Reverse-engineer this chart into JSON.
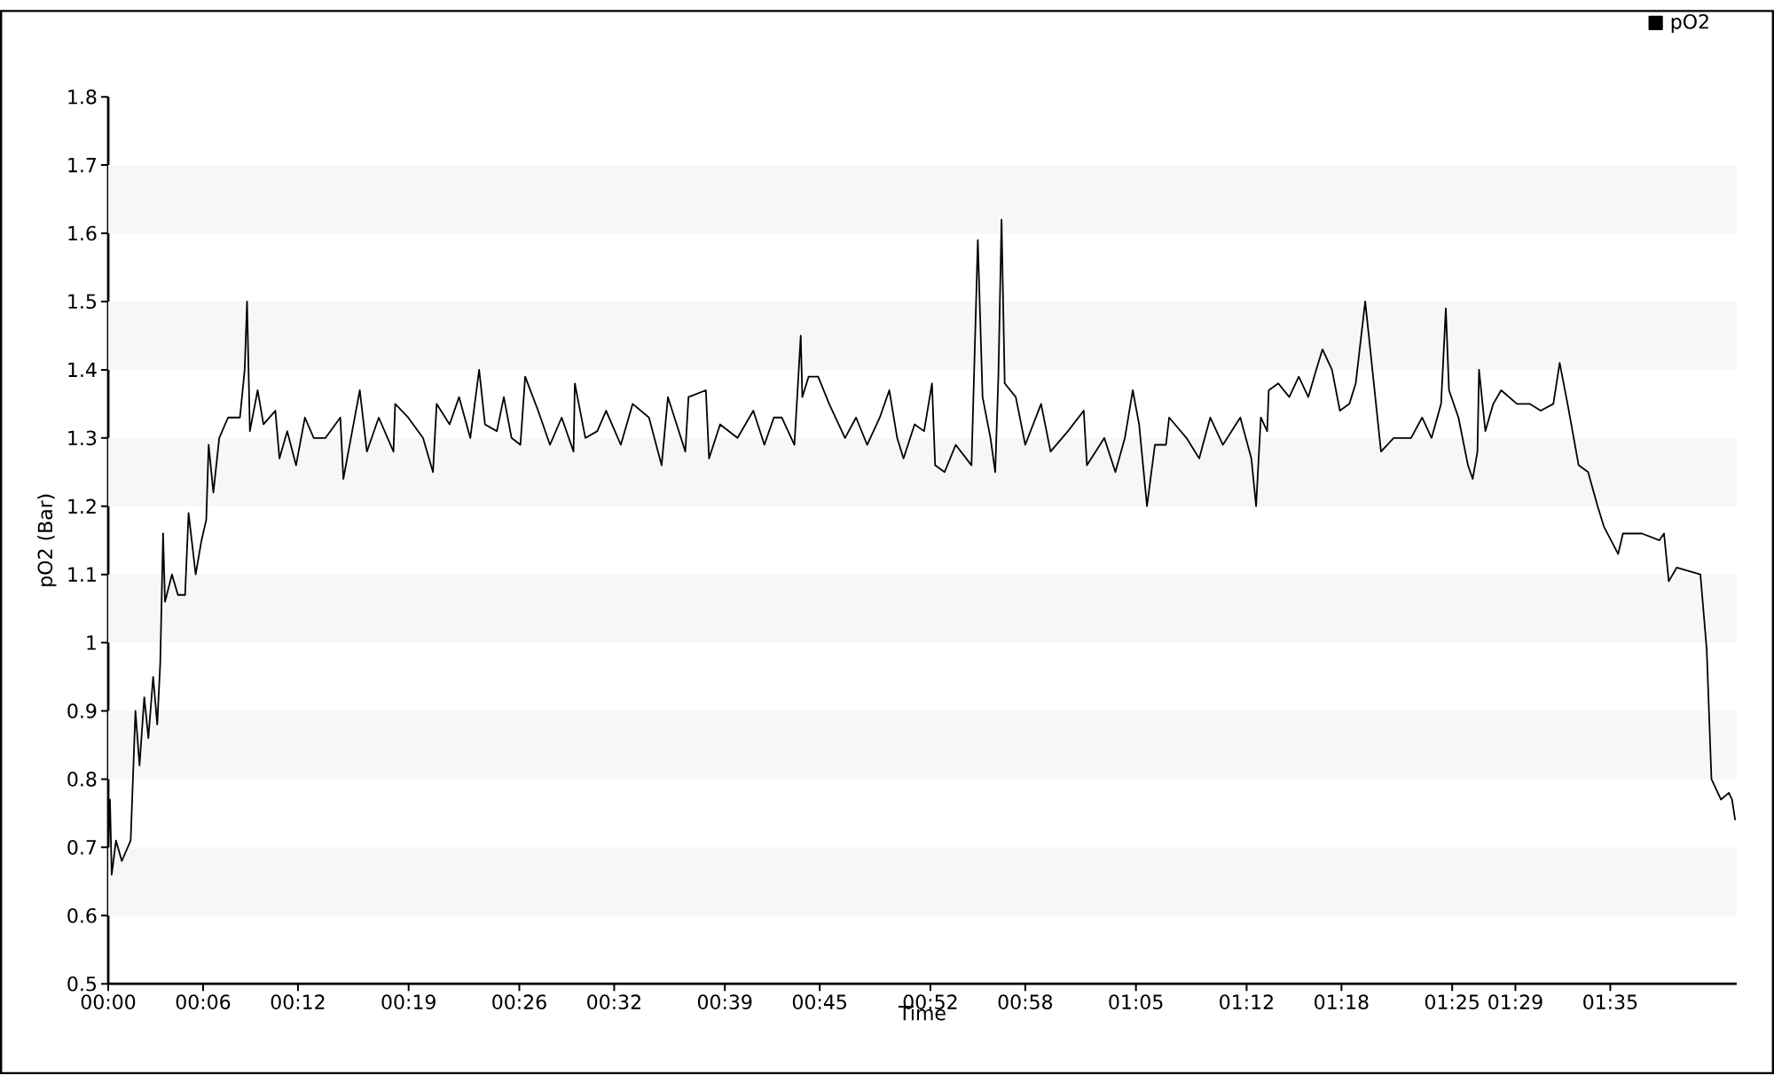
{
  "chart_data": {
    "type": "line",
    "xlabel": "Time",
    "ylabel": "pO2 (Bar)",
    "x": [
      0,
      0.11,
      0.22,
      0.49,
      0.86,
      1.42,
      1.72,
      1.98,
      2.28,
      2.54,
      2.84,
      3.1,
      3.29,
      3.47,
      3.59,
      4.03,
      4.41,
      4.86,
      5.08,
      5.53,
      5.9,
      6.2,
      6.35,
      6.65,
      7.02,
      7.58,
      8.33,
      8.63,
      8.78,
      8.96,
      9.45,
      9.82,
      10.57,
      10.83,
      11.32,
      11.88,
      12.44,
      13.0,
      13.74,
      14.68,
      14.87,
      15.43,
      15.91,
      16.36,
      17.11,
      18.04,
      18.15,
      18.97,
      19.91,
      20.54,
      20.77,
      21.59,
      22.19,
      22.9,
      23.46,
      23.83,
      24.58,
      25.02,
      25.51,
      26.07,
      26.37,
      27.19,
      27.94,
      28.68,
      29.43,
      29.51,
      30.18,
      30.93,
      31.49,
      32.42,
      33.17,
      34.2,
      35.0,
      35.4,
      36.5,
      36.7,
      37.8,
      38.0,
      38.7,
      39.8,
      40.8,
      41.5,
      42.1,
      42.6,
      43.4,
      43.8,
      43.9,
      44.3,
      44.9,
      45.6,
      46.6,
      47.3,
      48.0,
      48.8,
      49.4,
      49.9,
      50.3,
      51.0,
      51.6,
      52.1,
      52.3,
      52.9,
      53.6,
      54.6,
      55.0,
      55.3,
      55.8,
      56.1,
      56.3,
      56.5,
      56.7,
      57.4,
      58.0,
      59.0,
      59.6,
      60.7,
      61.7,
      61.9,
      63.0,
      63.7,
      64.3,
      64.8,
      65.2,
      65.7,
      66.2,
      66.9,
      67.1,
      68.2,
      69.0,
      69.7,
      70.5,
      71.6,
      72.3,
      72.6,
      72.9,
      73.3,
      73.4,
      74.0,
      74.7,
      75.3,
      75.9,
      76.4,
      76.8,
      77.4,
      77.9,
      78.5,
      78.9,
      79.5,
      80.0,
      80.5,
      81.3,
      82.4,
      83.1,
      83.7,
      84.3,
      84.6,
      84.8,
      85.4,
      86.0,
      86.3,
      86.6,
      86.7,
      87.1,
      87.6,
      88.1,
      89.1,
      89.9,
      90.6,
      91.4,
      91.8,
      92.3,
      93.0,
      93.6,
      94.2,
      94.6,
      95.5,
      95.8,
      97.0,
      98.1,
      98.4,
      98.7,
      99.2,
      100.7,
      101.1,
      101.4,
      102.0,
      102.5,
      102.7,
      102.9
    ],
    "series": [
      {
        "name": "pO2",
        "color": "#000000",
        "values": [
          0.7,
          0.77,
          0.66,
          0.71,
          0.68,
          0.71,
          0.9,
          0.82,
          0.92,
          0.86,
          0.95,
          0.88,
          0.97,
          1.16,
          1.06,
          1.1,
          1.07,
          1.07,
          1.19,
          1.1,
          1.15,
          1.18,
          1.29,
          1.22,
          1.3,
          1.33,
          1.33,
          1.4,
          1.5,
          1.31,
          1.37,
          1.32,
          1.34,
          1.27,
          1.31,
          1.26,
          1.33,
          1.3,
          1.3,
          1.33,
          1.24,
          1.31,
          1.37,
          1.28,
          1.33,
          1.28,
          1.35,
          1.33,
          1.3,
          1.25,
          1.35,
          1.32,
          1.36,
          1.3,
          1.4,
          1.32,
          1.31,
          1.36,
          1.3,
          1.29,
          1.39,
          1.34,
          1.29,
          1.33,
          1.28,
          1.38,
          1.3,
          1.31,
          1.34,
          1.29,
          1.35,
          1.33,
          1.26,
          1.36,
          1.28,
          1.36,
          1.37,
          1.27,
          1.32,
          1.3,
          1.34,
          1.29,
          1.33,
          1.33,
          1.29,
          1.45,
          1.36,
          1.39,
          1.39,
          1.35,
          1.3,
          1.33,
          1.29,
          1.33,
          1.37,
          1.3,
          1.27,
          1.32,
          1.31,
          1.38,
          1.26,
          1.25,
          1.29,
          1.26,
          1.59,
          1.36,
          1.3,
          1.25,
          1.39,
          1.62,
          1.38,
          1.36,
          1.29,
          1.35,
          1.28,
          1.31,
          1.34,
          1.26,
          1.3,
          1.25,
          1.3,
          1.37,
          1.32,
          1.2,
          1.29,
          1.29,
          1.33,
          1.3,
          1.27,
          1.33,
          1.29,
          1.33,
          1.27,
          1.2,
          1.33,
          1.31,
          1.37,
          1.38,
          1.36,
          1.39,
          1.36,
          1.4,
          1.43,
          1.4,
          1.34,
          1.35,
          1.38,
          1.5,
          1.39,
          1.28,
          1.3,
          1.3,
          1.33,
          1.3,
          1.35,
          1.49,
          1.37,
          1.33,
          1.26,
          1.24,
          1.28,
          1.4,
          1.31,
          1.35,
          1.37,
          1.35,
          1.35,
          1.34,
          1.35,
          1.41,
          1.35,
          1.26,
          1.25,
          1.2,
          1.17,
          1.13,
          1.16,
          1.16,
          1.15,
          1.16,
          1.09,
          1.11,
          1.1,
          0.99,
          0.8,
          0.77,
          0.78,
          0.77,
          0.74
        ]
      }
    ],
    "xlim": [
      0,
      103
    ],
    "ylim": [
      0.5,
      1.8
    ],
    "xticks": [
      {
        "value": 0,
        "label": "00:00"
      },
      {
        "value": 6,
        "label": "00:06"
      },
      {
        "value": 12,
        "label": "00:12"
      },
      {
        "value": 19,
        "label": "00:19"
      },
      {
        "value": 26,
        "label": "00:26"
      },
      {
        "value": 32,
        "label": "00:32"
      },
      {
        "value": 39,
        "label": "00:39"
      },
      {
        "value": 45,
        "label": "00:45"
      },
      {
        "value": 52,
        "label": "00:52"
      },
      {
        "value": 58,
        "label": "00:58"
      },
      {
        "value": 65,
        "label": "01:05"
      },
      {
        "value": 72,
        "label": "01:12"
      },
      {
        "value": 78,
        "label": "01:18"
      },
      {
        "value": 85,
        "label": "01:25"
      },
      {
        "value": 89,
        "label": "01:29"
      },
      {
        "value": 95,
        "label": "01:35"
      }
    ],
    "bands": [
      {
        "axis": "y",
        "from": 0.6,
        "to": 0.7,
        "color": "#f7f7f7"
      },
      {
        "axis": "y",
        "from": 0.8,
        "to": 0.9,
        "color": "#f7f7f7"
      },
      {
        "axis": "y",
        "from": 1.0,
        "to": 1.1,
        "color": "#f7f7f7"
      },
      {
        "axis": "y",
        "from": 1.2,
        "to": 1.3,
        "color": "#f7f7f7"
      },
      {
        "axis": "y",
        "from": 1.4,
        "to": 1.5,
        "color": "#f7f7f7"
      },
      {
        "axis": "y",
        "from": 1.6,
        "to": 1.7,
        "color": "#f7f7f7"
      }
    ],
    "yticks": [
      0.5,
      0.6,
      0.7,
      0.8,
      0.9,
      1,
      1.1,
      1.2,
      1.3,
      1.4,
      1.5,
      1.6,
      1.7,
      1.8
    ],
    "legend": "top right",
    "marker": "none",
    "line_style": "solid"
  }
}
